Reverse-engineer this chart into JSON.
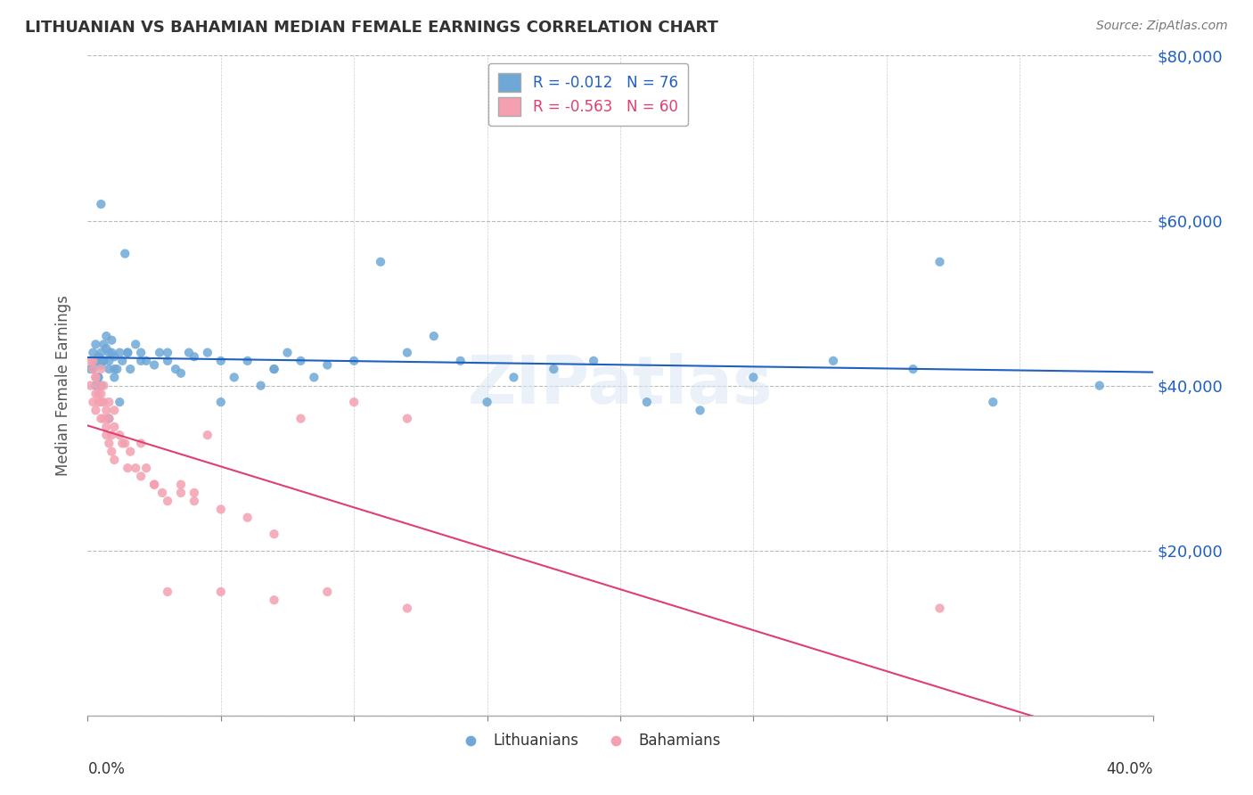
{
  "title": "LITHUANIAN VS BAHAMIAN MEDIAN FEMALE EARNINGS CORRELATION CHART",
  "source": "Source: ZipAtlas.com",
  "ylabel": "Median Female Earnings",
  "blue_label": "Lithuanians",
  "pink_label": "Bahamians",
  "blue_R": -0.012,
  "blue_N": 76,
  "pink_R": -0.563,
  "pink_N": 60,
  "blue_color": "#6fa8d6",
  "pink_color": "#f4a0b0",
  "trend_blue_color": "#2060c0",
  "trend_pink_color": "#e04070",
  "watermark": "ZIPatlas",
  "xlim": [
    0.0,
    0.4
  ],
  "ylim": [
    0,
    80000
  ],
  "yticks": [
    0,
    20000,
    40000,
    60000,
    80000
  ],
  "ytick_labels": [
    "",
    "$20,000",
    "$40,000",
    "$60,000",
    "$80,000"
  ],
  "blue_x": [
    0.001,
    0.002,
    0.003,
    0.003,
    0.004,
    0.004,
    0.005,
    0.005,
    0.005,
    0.006,
    0.006,
    0.007,
    0.007,
    0.008,
    0.008,
    0.009,
    0.009,
    0.01,
    0.01,
    0.011,
    0.012,
    0.013,
    0.014,
    0.015,
    0.016,
    0.018,
    0.02,
    0.022,
    0.025,
    0.027,
    0.03,
    0.033,
    0.035,
    0.038,
    0.04,
    0.045,
    0.05,
    0.055,
    0.06,
    0.065,
    0.07,
    0.075,
    0.08,
    0.085,
    0.09,
    0.1,
    0.11,
    0.12,
    0.13,
    0.14,
    0.15,
    0.16,
    0.175,
    0.19,
    0.21,
    0.23,
    0.25,
    0.28,
    0.31,
    0.34,
    0.002,
    0.004,
    0.006,
    0.008,
    0.01,
    0.015,
    0.02,
    0.03,
    0.05,
    0.07,
    0.003,
    0.005,
    0.008,
    0.012,
    0.38,
    0.32
  ],
  "blue_y": [
    42000,
    44000,
    43000,
    45000,
    41000,
    43500,
    44000,
    42500,
    40000,
    43000,
    45000,
    44500,
    46000,
    43000,
    42000,
    44000,
    45500,
    43500,
    41000,
    42000,
    44000,
    43000,
    56000,
    44000,
    42000,
    45000,
    44000,
    43000,
    42500,
    44000,
    43000,
    42000,
    41500,
    44000,
    43500,
    44000,
    38000,
    41000,
    43000,
    40000,
    42000,
    44000,
    43000,
    41000,
    42500,
    43000,
    55000,
    44000,
    46000,
    43000,
    38000,
    41000,
    42000,
    43000,
    38000,
    37000,
    41000,
    43000,
    42000,
    38000,
    42000,
    41000,
    43000,
    44000,
    42000,
    44000,
    43000,
    44000,
    43000,
    42000,
    40000,
    62000,
    36000,
    38000,
    40000,
    55000
  ],
  "pink_x": [
    0.001,
    0.001,
    0.002,
    0.002,
    0.003,
    0.003,
    0.003,
    0.004,
    0.004,
    0.005,
    0.005,
    0.005,
    0.006,
    0.006,
    0.007,
    0.007,
    0.008,
    0.008,
    0.009,
    0.01,
    0.01,
    0.012,
    0.013,
    0.014,
    0.016,
    0.018,
    0.02,
    0.022,
    0.025,
    0.028,
    0.03,
    0.035,
    0.04,
    0.045,
    0.05,
    0.06,
    0.07,
    0.08,
    0.1,
    0.12,
    0.002,
    0.003,
    0.004,
    0.005,
    0.006,
    0.007,
    0.008,
    0.009,
    0.01,
    0.015,
    0.02,
    0.025,
    0.03,
    0.035,
    0.04,
    0.05,
    0.07,
    0.09,
    0.12,
    0.32
  ],
  "pink_y": [
    43000,
    40000,
    42000,
    38000,
    41000,
    39000,
    37000,
    40000,
    38000,
    39000,
    42000,
    36000,
    38000,
    40000,
    35000,
    37000,
    38000,
    36000,
    34000,
    37000,
    35000,
    34000,
    33000,
    33000,
    32000,
    30000,
    33000,
    30000,
    28000,
    27000,
    26000,
    28000,
    27000,
    34000,
    25000,
    24000,
    22000,
    36000,
    38000,
    36000,
    43000,
    41000,
    39000,
    38000,
    36000,
    34000,
    33000,
    32000,
    31000,
    30000,
    29000,
    28000,
    15000,
    27000,
    26000,
    15000,
    14000,
    15000,
    13000,
    13000
  ]
}
